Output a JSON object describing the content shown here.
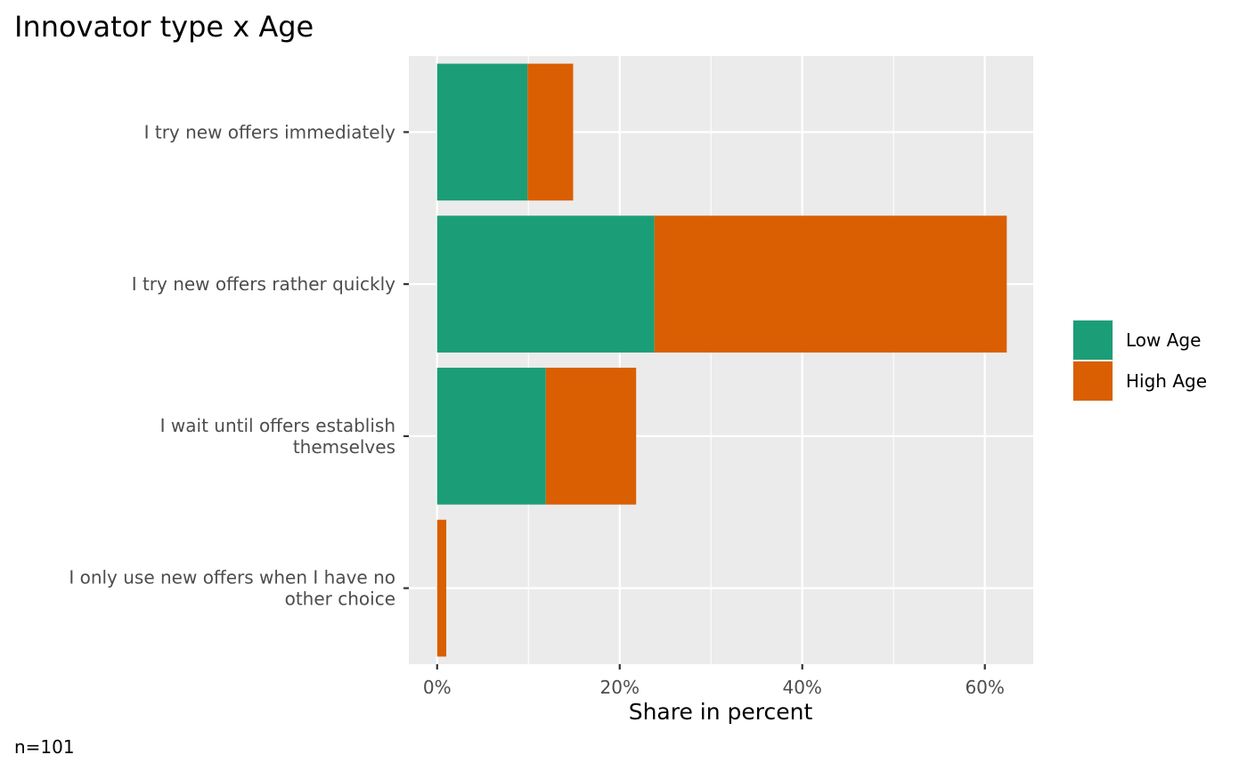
{
  "chart_data": {
    "type": "bar",
    "orientation": "horizontal",
    "stacked": true,
    "title": "Innovator type x Age",
    "xlabel": "Share in percent",
    "ylabel": "",
    "caption": "n=101",
    "categories": [
      [
        "I try new offers immediately"
      ],
      [
        "I try new offers rather quickly"
      ],
      [
        "I wait until offers establish",
        "themselves"
      ],
      [
        "I only use new offers when I have no",
        "other choice"
      ]
    ],
    "series": [
      {
        "name": "Low Age",
        "color": "#1b9e77",
        "values": [
          9.9,
          23.8,
          11.9,
          0.0
        ]
      },
      {
        "name": "High Age",
        "color": "#d95f02",
        "values": [
          5.0,
          38.6,
          9.9,
          1.0
        ]
      }
    ],
    "xlim": [
      -3.1,
      65.3
    ],
    "xticks": [
      0,
      20,
      40,
      60
    ],
    "xtick_labels": [
      "0%",
      "20%",
      "40%",
      "60%"
    ],
    "grid": true,
    "panel_background": "#ebebeb",
    "legend_position": "right"
  }
}
